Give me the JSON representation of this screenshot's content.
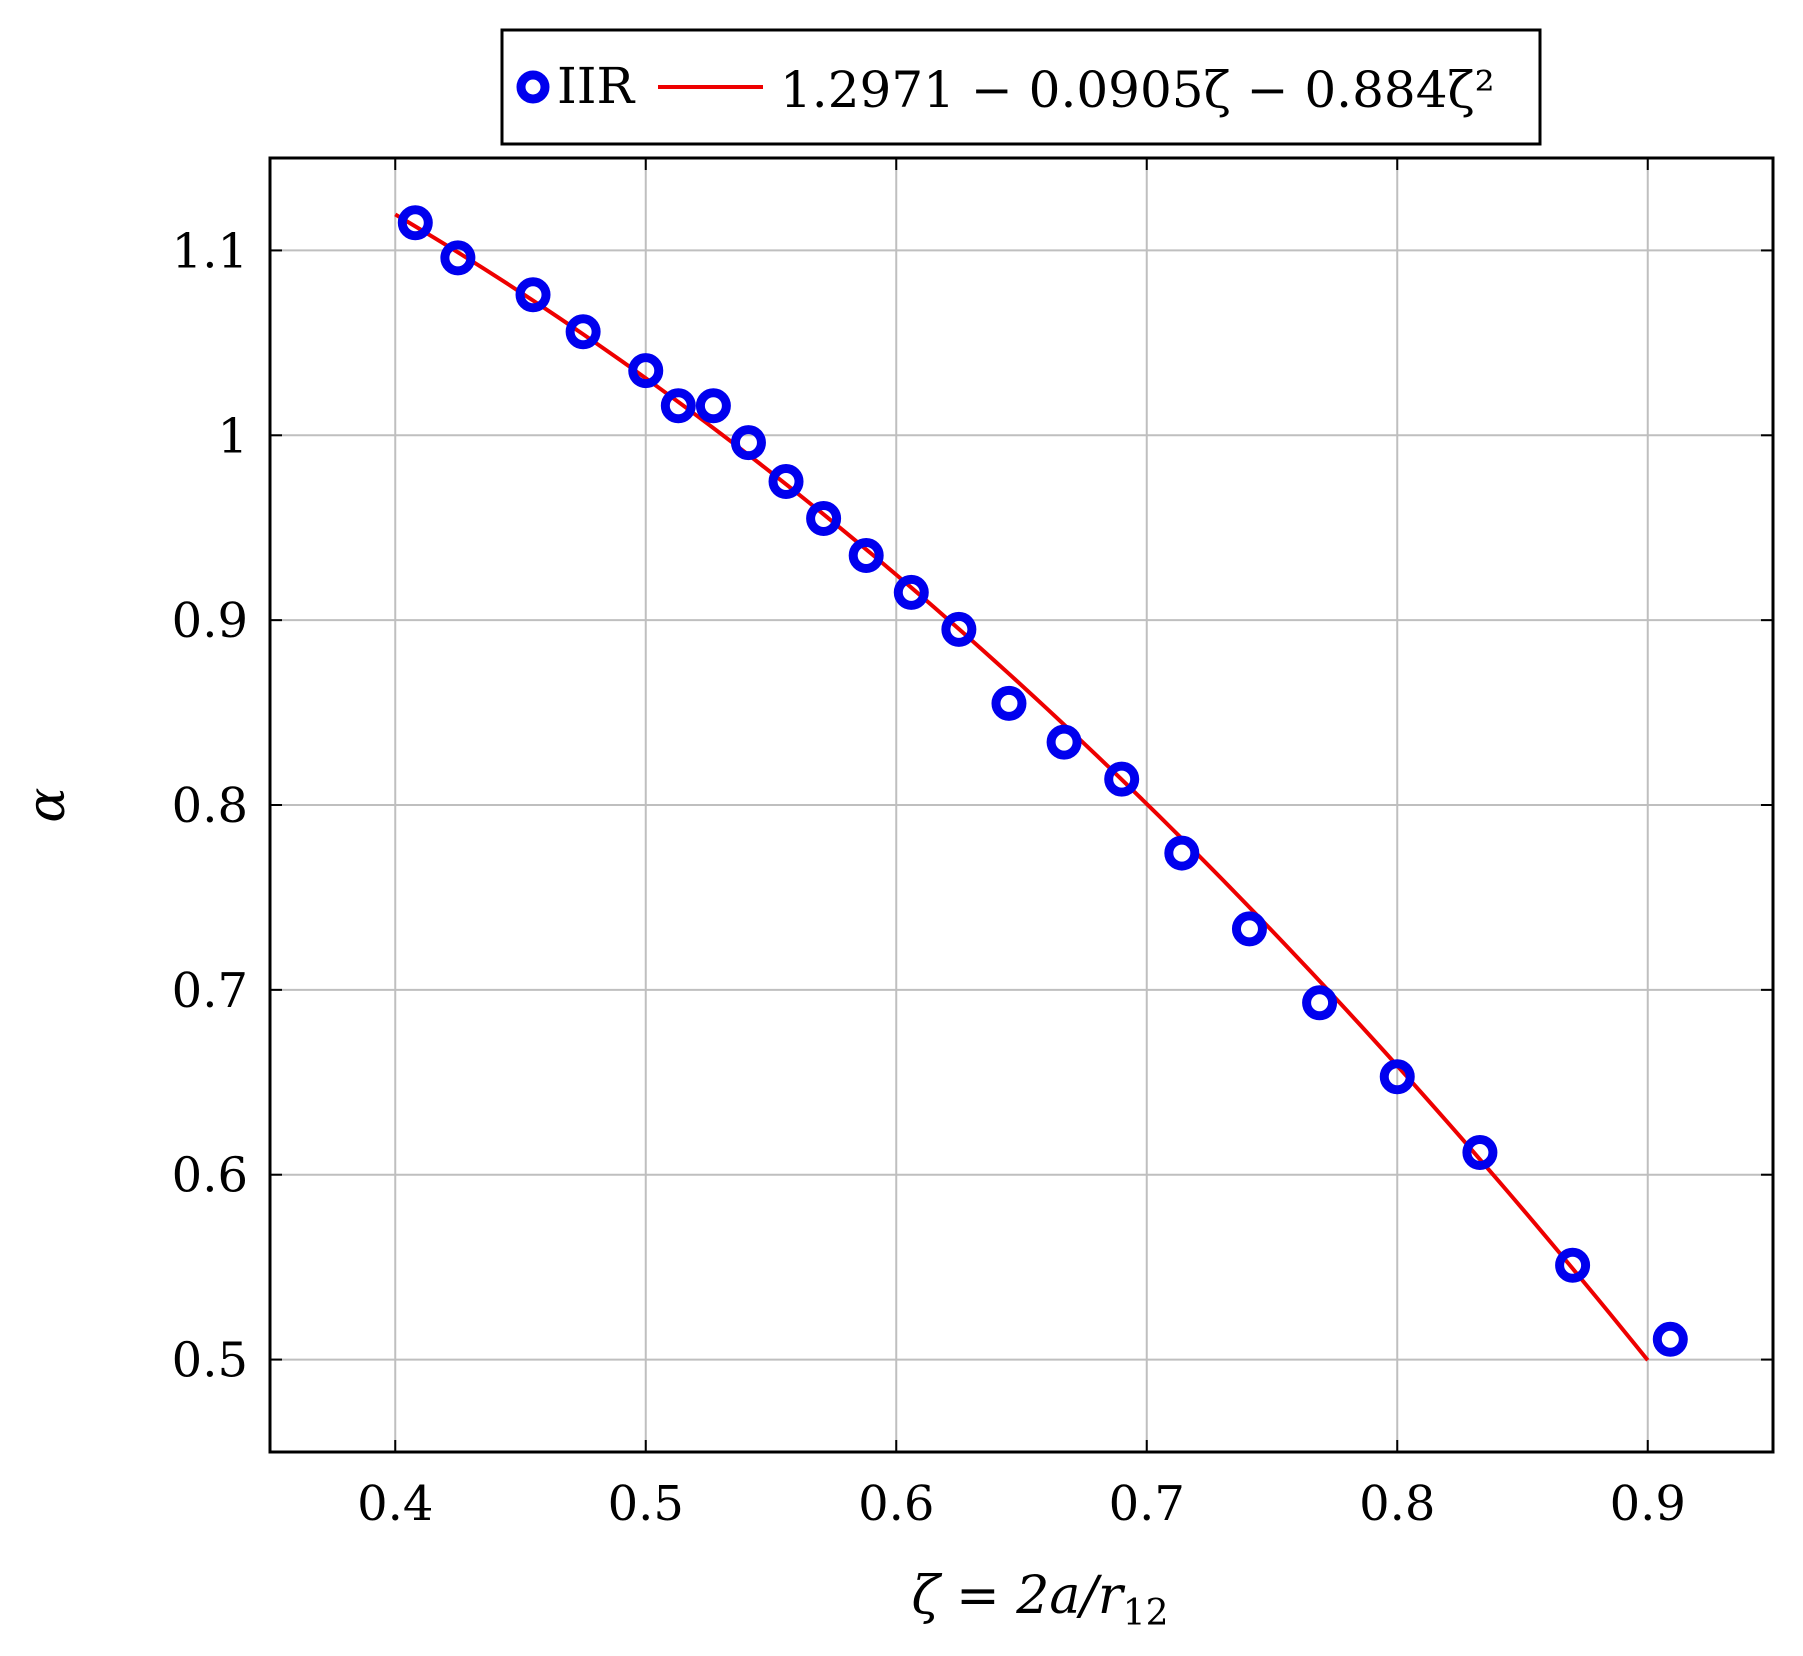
{
  "chart_data": {
    "type": "scatter",
    "xlabel": {
      "main": "ζ = 2a/r",
      "sub": "12"
    },
    "ylabel": "α",
    "xlim": [
      0.35,
      0.95
    ],
    "ylim": [
      0.45,
      1.15
    ],
    "xticks": [
      0.4,
      0.5,
      0.6,
      0.7,
      0.8,
      0.9
    ],
    "xtick_labels": [
      "0.4",
      "0.5",
      "0.6",
      "0.7",
      "0.8",
      "0.9"
    ],
    "yticks": [
      0.5,
      0.6,
      0.7,
      0.8,
      0.9,
      1.0,
      1.1
    ],
    "ytick_labels": [
      "0.5",
      "0.6",
      "0.7",
      "0.8",
      "0.9",
      "1",
      "1.1"
    ],
    "grid": true,
    "legend_position": "top-center, outside plot",
    "colors": {
      "markers": "#0000ee",
      "fit_line": "#ee0000",
      "grid": "#bfbfbf",
      "axes": "#000000"
    },
    "series": [
      {
        "name": "IIR",
        "kind": "markers",
        "marker": "open-circle",
        "points": [
          [
            0.408,
            1.115
          ],
          [
            0.425,
            1.096
          ],
          [
            0.455,
            1.076
          ],
          [
            0.475,
            1.056
          ],
          [
            0.5,
            1.035
          ],
          [
            0.513,
            1.016
          ],
          [
            0.527,
            1.016
          ],
          [
            0.541,
            0.996
          ],
          [
            0.556,
            0.975
          ],
          [
            0.571,
            0.955
          ],
          [
            0.588,
            0.935
          ],
          [
            0.606,
            0.915
          ],
          [
            0.625,
            0.895
          ],
          [
            0.645,
            0.855
          ],
          [
            0.667,
            0.834
          ],
          [
            0.69,
            0.814
          ],
          [
            0.714,
            0.774
          ],
          [
            0.741,
            0.733
          ],
          [
            0.769,
            0.693
          ],
          [
            0.8,
            0.653
          ],
          [
            0.833,
            0.612
          ],
          [
            0.87,
            0.551
          ],
          [
            0.909,
            0.511
          ]
        ]
      },
      {
        "name": "1.2971 − 0.0905ζ − 0.884ζ²",
        "kind": "line",
        "coefficients": [
          1.2971,
          -0.0905,
          -0.884
        ],
        "x_range": [
          0.4,
          0.9
        ]
      }
    ]
  }
}
